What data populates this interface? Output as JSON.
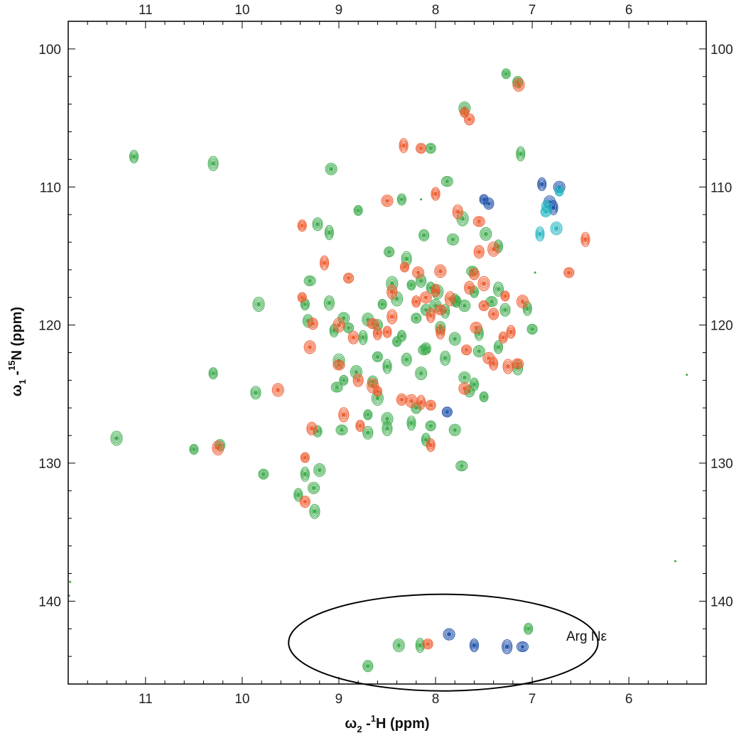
{
  "chart_data": {
    "type": "scatter",
    "title": "",
    "xlabel_main": "ω",
    "xlabel_sub": "2",
    "xlabel_sep": " -",
    "xlabel_sup": "1",
    "xlabel_rest": "H (ppm)",
    "ylabel_main": "ω",
    "ylabel_sub": "1",
    "ylabel_sep": " -",
    "ylabel_sup": "15",
    "ylabel_rest": "N (ppm)",
    "x_reversed": true,
    "y_reversed": true,
    "xlim": [
      11.8,
      5.2
    ],
    "ylim": [
      98,
      146
    ],
    "x_ticks": [
      "11",
      "10",
      "9",
      "8",
      "7",
      "6"
    ],
    "y_ticks": [
      "100",
      "110",
      "120",
      "130",
      "140"
    ],
    "grid": false,
    "annotation": {
      "label": "Arg Nε",
      "ellipse_center": [
        7.92,
        143.0
      ],
      "ellipse_radius_ppm": [
        1.6,
        3.5
      ]
    },
    "colors": {
      "green": "#3aaa4a",
      "orange": "#ee5a2c",
      "blue": "#1f4fa8",
      "cyan": "#1fb5c0"
    },
    "series": [
      {
        "color": "green",
        "points": [
          [
            7.27,
            101.8
          ],
          [
            7.15,
            102.4
          ],
          [
            7.7,
            104.3
          ],
          [
            7.12,
            107.6
          ],
          [
            8.05,
            107.2
          ],
          [
            9.08,
            108.7
          ],
          [
            11.12,
            107.8
          ],
          [
            10.3,
            108.3
          ],
          [
            7.88,
            109.6
          ],
          [
            8.35,
            110.9
          ],
          [
            9.22,
            112.7
          ],
          [
            7.72,
            112.3
          ],
          [
            8.8,
            111.7
          ],
          [
            8.12,
            113.5
          ],
          [
            7.48,
            113.4
          ],
          [
            9.1,
            113.3
          ],
          [
            8.48,
            114.7
          ],
          [
            7.82,
            113.8
          ],
          [
            7.35,
            114.3
          ],
          [
            8.3,
            115.2
          ],
          [
            7.62,
            116.1
          ],
          [
            8.05,
            117.3
          ],
          [
            8.15,
            116.8
          ],
          [
            7.98,
            117.6
          ],
          [
            8.25,
            117.1
          ],
          [
            8.1,
            118.9
          ],
          [
            8.0,
            118.6
          ],
          [
            7.9,
            119.0
          ],
          [
            8.2,
            119.5
          ],
          [
            7.7,
            118.6
          ],
          [
            7.8,
            118.2
          ],
          [
            7.35,
            117.4
          ],
          [
            7.42,
            118.3
          ],
          [
            7.6,
            117.6
          ],
          [
            7.28,
            118.9
          ],
          [
            8.4,
            118.1
          ],
          [
            8.55,
            118.5
          ],
          [
            8.6,
            120.0
          ],
          [
            8.7,
            119.6
          ],
          [
            8.75,
            120.9
          ],
          [
            8.9,
            120.2
          ],
          [
            8.95,
            119.5
          ],
          [
            9.05,
            120.4
          ],
          [
            9.1,
            118.4
          ],
          [
            9.3,
            116.8
          ],
          [
            9.35,
            118.5
          ],
          [
            9.32,
            119.7
          ],
          [
            9.83,
            118.5
          ],
          [
            8.4,
            121.2
          ],
          [
            8.1,
            121.7
          ],
          [
            7.8,
            121.0
          ],
          [
            7.55,
            120.6
          ],
          [
            7.0,
            120.3
          ],
          [
            7.55,
            121.9
          ],
          [
            7.35,
            121.6
          ],
          [
            7.9,
            122.4
          ],
          [
            8.12,
            121.8
          ],
          [
            8.35,
            120.8
          ],
          [
            8.3,
            122.5
          ],
          [
            9.0,
            122.6
          ],
          [
            8.95,
            124.0
          ],
          [
            8.65,
            124.1
          ],
          [
            8.15,
            123.5
          ],
          [
            8.5,
            123.0
          ],
          [
            8.6,
            122.3
          ],
          [
            7.7,
            123.8
          ],
          [
            7.6,
            124.3
          ],
          [
            7.15,
            123.1
          ],
          [
            9.02,
            124.5
          ],
          [
            10.3,
            123.5
          ],
          [
            9.86,
            124.9
          ],
          [
            8.6,
            125.3
          ],
          [
            8.7,
            126.5
          ],
          [
            8.2,
            126.0
          ],
          [
            8.5,
            126.8
          ],
          [
            8.25,
            127.1
          ],
          [
            8.05,
            127.3
          ],
          [
            7.8,
            127.6
          ],
          [
            8.1,
            128.3
          ],
          [
            8.5,
            127.5
          ],
          [
            8.97,
            127.6
          ],
          [
            9.22,
            127.7
          ],
          [
            8.7,
            127.8
          ],
          [
            11.3,
            128.2
          ],
          [
            10.5,
            129.0
          ],
          [
            10.23,
            128.7
          ],
          [
            9.2,
            130.5
          ],
          [
            9.35,
            130.8
          ],
          [
            9.78,
            130.8
          ],
          [
            9.26,
            131.8
          ],
          [
            9.42,
            132.3
          ],
          [
            9.25,
            133.5
          ],
          [
            7.73,
            130.2
          ],
          [
            7.78,
            118.3
          ],
          [
            7.95,
            120.2
          ],
          [
            8.45,
            117.0
          ],
          [
            7.5,
            125.2
          ],
          [
            7.65,
            124.8
          ],
          [
            8.82,
            123.4
          ],
          [
            7.05,
            118.8
          ]
        ]
      },
      {
        "color": "orange",
        "points": [
          [
            7.7,
            104.6
          ],
          [
            7.65,
            105.1
          ],
          [
            7.14,
            102.6
          ],
          [
            8.33,
            107.0
          ],
          [
            8.15,
            107.2
          ],
          [
            8.5,
            111.0
          ],
          [
            8.0,
            110.5
          ],
          [
            7.77,
            111.8
          ],
          [
            7.55,
            112.5
          ],
          [
            9.38,
            112.8
          ],
          [
            7.55,
            114.7
          ],
          [
            7.4,
            114.5
          ],
          [
            8.32,
            115.8
          ],
          [
            7.6,
            116.3
          ],
          [
            7.95,
            116.1
          ],
          [
            6.45,
            113.8
          ],
          [
            6.62,
            116.2
          ],
          [
            8.1,
            118.0
          ],
          [
            8.0,
            117.5
          ],
          [
            7.85,
            118.1
          ],
          [
            7.95,
            118.9
          ],
          [
            8.2,
            118.3
          ],
          [
            7.65,
            117.3
          ],
          [
            7.5,
            117.0
          ],
          [
            7.28,
            117.9
          ],
          [
            7.4,
            119.2
          ],
          [
            7.1,
            118.3
          ],
          [
            8.05,
            119.3
          ],
          [
            7.5,
            118.6
          ],
          [
            7.58,
            120.2
          ],
          [
            7.22,
            120.5
          ],
          [
            8.45,
            119.4
          ],
          [
            8.65,
            119.9
          ],
          [
            8.5,
            120.5
          ],
          [
            8.85,
            120.9
          ],
          [
            9.0,
            120.0
          ],
          [
            9.38,
            118.0
          ],
          [
            9.27,
            119.9
          ],
          [
            9.3,
            121.6
          ],
          [
            7.95,
            120.5
          ],
          [
            7.68,
            121.8
          ],
          [
            7.45,
            122.4
          ],
          [
            7.4,
            122.8
          ],
          [
            7.25,
            123.0
          ],
          [
            7.15,
            122.8
          ],
          [
            7.3,
            120.9
          ],
          [
            8.8,
            124.0
          ],
          [
            8.65,
            124.4
          ],
          [
            8.6,
            124.8
          ],
          [
            8.35,
            125.4
          ],
          [
            8.25,
            125.5
          ],
          [
            8.15,
            125.6
          ],
          [
            8.05,
            125.8
          ],
          [
            7.7,
            124.6
          ],
          [
            8.05,
            128.7
          ],
          [
            8.95,
            126.5
          ],
          [
            9.0,
            122.9
          ],
          [
            8.78,
            127.3
          ],
          [
            9.28,
            127.5
          ],
          [
            10.25,
            128.9
          ],
          [
            9.35,
            129.6
          ],
          [
            9.35,
            132.8
          ],
          [
            9.63,
            124.7
          ],
          [
            9.15,
            115.5
          ],
          [
            8.9,
            116.6
          ],
          [
            8.18,
            116.2
          ],
          [
            8.6,
            120.6
          ],
          [
            8.45,
            117.6
          ]
        ]
      },
      {
        "color": "blue",
        "points": [
          [
            7.5,
            110.9
          ],
          [
            7.45,
            111.2
          ],
          [
            6.82,
            111.1
          ],
          [
            6.78,
            111.5
          ],
          [
            7.88,
            126.3
          ],
          [
            6.72,
            110.0
          ],
          [
            6.9,
            109.8
          ]
        ]
      },
      {
        "color": "cyan",
        "points": [
          [
            6.72,
            110.3
          ],
          [
            6.85,
            111.4
          ],
          [
            6.75,
            113.0
          ],
          [
            6.92,
            113.4
          ],
          [
            6.86,
            111.8
          ]
        ]
      }
    ],
    "arg_peaks": [
      {
        "color": "green",
        "x": 8.7,
        "y": 144.7
      },
      {
        "color": "green",
        "x": 8.38,
        "y": 143.2
      },
      {
        "color": "green",
        "x": 8.16,
        "y": 143.2
      },
      {
        "color": "orange",
        "x": 8.08,
        "y": 143.1
      },
      {
        "color": "blue",
        "x": 7.86,
        "y": 142.4
      },
      {
        "color": "blue",
        "x": 7.6,
        "y": 143.2
      },
      {
        "color": "blue",
        "x": 7.26,
        "y": 143.3
      },
      {
        "color": "blue",
        "x": 7.1,
        "y": 143.3
      },
      {
        "color": "green",
        "x": 7.04,
        "y": 142.0
      }
    ],
    "specks": [
      [
        5.4,
        123.6
      ],
      [
        5.52,
        137.1
      ],
      [
        11.78,
        138.6
      ],
      [
        11.79,
        139.6
      ],
      [
        6.97,
        116.2
      ],
      [
        8.15,
        110.9
      ]
    ]
  }
}
